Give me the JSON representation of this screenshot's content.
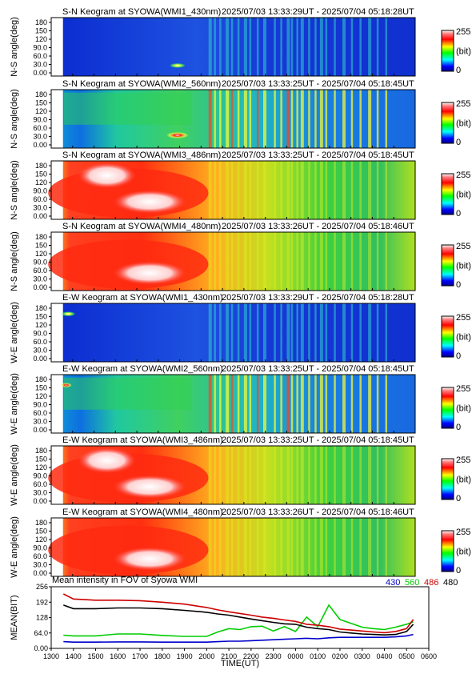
{
  "keograms": [
    {
      "title": "S-N Keogram at SYOWA(WMI1_430nm)",
      "time_range": "2025/07/03 13:33:29UT - 2025/07/04 05:18:28UT",
      "ylabel": "N-S angle(deg)",
      "kind": "blue"
    },
    {
      "title": "S-N Keogram at SYOWA(WMI2_560nm)",
      "time_range": "2025/07/03 13:33:25UT - 2025/07/04 05:18:45UT",
      "ylabel": "N-S angle(deg)",
      "kind": "green"
    },
    {
      "title": "S-N Keogram at SYOWA(WMI3_486nm)",
      "time_range": "2025/07/03 13:33:25UT - 2025/07/04 05:18:45UT",
      "ylabel": "N-S angle(deg)",
      "kind": "red"
    },
    {
      "title": "S-N Keogram at SYOWA(WMI4_480nm)",
      "time_range": "2025/07/03 13:33:26UT - 2025/07/04 05:18:46UT",
      "ylabel": "N-S angle(deg)",
      "kind": "red"
    },
    {
      "title": "E-W Keogram at SYOWA(WMI1_430nm)",
      "time_range": "2025/07/03 13:33:29UT - 2025/07/04 05:18:28UT",
      "ylabel": "W-E angle(deg)",
      "kind": "blue"
    },
    {
      "title": "E-W Keogram at SYOWA(WMI2_560nm)",
      "time_range": "2025/07/03 13:33:25UT - 2025/07/04 05:18:45UT",
      "ylabel": "W-E angle(deg)",
      "kind": "green"
    },
    {
      "title": "E-W Keogram at SYOWA(WMI3_486nm)",
      "time_range": "2025/07/03 13:33:25UT - 2025/07/04 05:18:45UT",
      "ylabel": "W-E angle(deg)",
      "kind": "red"
    },
    {
      "title": "E-W Keogram at SYOWA(WMI4_480nm)",
      "time_range": "2025/07/03 13:33:26UT - 2025/07/04 05:18:46UT",
      "ylabel": "W-E angle(deg)",
      "kind": "red"
    }
  ],
  "angle_ticks": [
    "180",
    "150",
    "120",
    "90.0",
    "60.0",
    "30.0",
    "0.00"
  ],
  "colorbar": {
    "max_label": "255",
    "unit_label": "(bit)",
    "min_label": "0"
  },
  "colors": {
    "c430": "#0000cc",
    "c560": "#00cc00",
    "c486": "#cc0000",
    "c480": "#000000"
  },
  "chart_data": {
    "type": "line",
    "title": "Mean intensity in FOV of Syowa WMI",
    "xlabel": "TIME(UT)",
    "ylabel": "MEAN(BIT)",
    "ylim": [
      0,
      256
    ],
    "y_ticks": [
      "256",
      "192",
      "128",
      "64.0",
      "0.00"
    ],
    "x_ticks": [
      "1300",
      "1400",
      "1500",
      "1600",
      "1700",
      "1800",
      "1900",
      "2000",
      "2100",
      "2200",
      "2300",
      "0000",
      "0100",
      "0200",
      "0300",
      "0400",
      "0500",
      "0600"
    ],
    "x_hours": [
      13.55,
      14.0,
      15.0,
      16.0,
      17.0,
      18.0,
      19.0,
      20.0,
      20.5,
      21.0,
      21.5,
      22.0,
      22.5,
      23.0,
      23.5,
      24.0,
      24.5,
      25.0,
      25.5,
      26.0,
      26.5,
      27.0,
      27.5,
      28.0,
      28.5,
      29.0,
      29.3
    ],
    "series": [
      {
        "name": "480",
        "values": [
          180,
          165,
          165,
          168,
          168,
          165,
          158,
          150,
          143,
          138,
          130,
          122,
          115,
          108,
          102,
          100,
          88,
          82,
          78,
          68,
          64,
          60,
          58,
          56,
          58,
          70,
          100
        ]
      },
      {
        "name": "486",
        "values": [
          226,
          205,
          200,
          200,
          198,
          192,
          184,
          170,
          160,
          152,
          145,
          138,
          130,
          125,
          118,
          112,
          100,
          96,
          90,
          80,
          76,
          72,
          68,
          65,
          70,
          82,
          120
        ]
      },
      {
        "name": "560",
        "values": [
          55,
          52,
          52,
          60,
          60,
          54,
          50,
          50,
          68,
          82,
          78,
          90,
          92,
          72,
          90,
          70,
          130,
          90,
          180,
          120,
          104,
          88,
          82,
          78,
          88,
          100,
          110
        ]
      },
      {
        "name": "430",
        "values": [
          28,
          26,
          26,
          27,
          27,
          26,
          26,
          26,
          28,
          30,
          30,
          32,
          34,
          36,
          38,
          40,
          42,
          40,
          44,
          46,
          46,
          46,
          46,
          46,
          48,
          52,
          58
        ]
      }
    ]
  }
}
